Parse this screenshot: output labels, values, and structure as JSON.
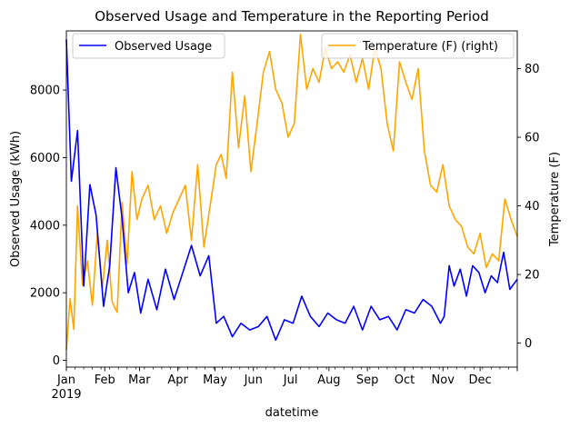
{
  "chart_data": {
    "type": "line",
    "title": "Observed Usage and Temperature in the Reporting Period",
    "xlabel": "datetime",
    "x_range": [
      "2019-01-01",
      "2019-12-31"
    ],
    "x_ticks": {
      "months": [
        "Jan",
        "Feb",
        "Mar",
        "Apr",
        "May",
        "Jun",
        "Jul",
        "Aug",
        "Sep",
        "Oct",
        "Nov",
        "Dec"
      ],
      "year_label": "2019"
    },
    "left_axis": {
      "label": "Observed Usage (kWh)",
      "ylim": [
        -200,
        9750
      ],
      "ticks": [
        0,
        2000,
        4000,
        6000,
        8000
      ]
    },
    "right_axis": {
      "label": "Temperature (F)",
      "ylim": [
        -7,
        91
      ],
      "ticks": [
        0,
        20,
        40,
        60,
        80
      ]
    },
    "legend": {
      "left": {
        "label": "Observed Usage",
        "position": "upper-left"
      },
      "right": {
        "label": "Temperature (F) (right)",
        "position": "upper-right"
      }
    },
    "series": [
      {
        "name": "Observed Usage",
        "axis": "left",
        "color": "#0000ff",
        "x": [
          "2019-01-01",
          "2019-01-05",
          "2019-01-10",
          "2019-01-15",
          "2019-01-20",
          "2019-01-25",
          "2019-01-31",
          "2019-02-05",
          "2019-02-10",
          "2019-02-15",
          "2019-02-20",
          "2019-02-25",
          "2019-03-02",
          "2019-03-08",
          "2019-03-15",
          "2019-03-22",
          "2019-03-29",
          "2019-04-05",
          "2019-04-12",
          "2019-04-19",
          "2019-04-26",
          "2019-05-02",
          "2019-05-08",
          "2019-05-15",
          "2019-05-22",
          "2019-05-29",
          "2019-06-05",
          "2019-06-12",
          "2019-06-19",
          "2019-06-26",
          "2019-07-03",
          "2019-07-10",
          "2019-07-17",
          "2019-07-24",
          "2019-07-31",
          "2019-08-07",
          "2019-08-14",
          "2019-08-21",
          "2019-08-28",
          "2019-09-04",
          "2019-09-11",
          "2019-09-18",
          "2019-09-25",
          "2019-10-02",
          "2019-10-09",
          "2019-10-16",
          "2019-10-23",
          "2019-10-30",
          "2019-11-02",
          "2019-11-06",
          "2019-11-10",
          "2019-11-15",
          "2019-11-20",
          "2019-11-25",
          "2019-11-30",
          "2019-12-05",
          "2019-12-10",
          "2019-12-15",
          "2019-12-20",
          "2019-12-25",
          "2019-12-31"
        ],
        "values": [
          9500,
          5300,
          6800,
          2200,
          5200,
          4300,
          1600,
          2800,
          5700,
          4200,
          2000,
          2600,
          1400,
          2400,
          1500,
          2700,
          1800,
          2600,
          3400,
          2500,
          3100,
          1100,
          1300,
          700,
          1100,
          900,
          1000,
          1300,
          600,
          1200,
          1100,
          1900,
          1300,
          1000,
          1400,
          1200,
          1100,
          1600,
          900,
          1600,
          1200,
          1300,
          900,
          1500,
          1400,
          1800,
          1600,
          1100,
          1300,
          2800,
          2200,
          2700,
          1900,
          2800,
          2600,
          2000,
          2500,
          2300,
          3200,
          2100,
          2400
        ]
      },
      {
        "name": "Temperature (F) (right)",
        "axis": "right",
        "color": "#ffa500",
        "x": [
          "2019-01-01",
          "2019-01-04",
          "2019-01-07",
          "2019-01-10",
          "2019-01-14",
          "2019-01-18",
          "2019-01-22",
          "2019-01-26",
          "2019-01-30",
          "2019-02-03",
          "2019-02-07",
          "2019-02-11",
          "2019-02-15",
          "2019-02-19",
          "2019-02-23",
          "2019-02-27",
          "2019-03-03",
          "2019-03-08",
          "2019-03-13",
          "2019-03-18",
          "2019-03-23",
          "2019-03-28",
          "2019-04-02",
          "2019-04-07",
          "2019-04-12",
          "2019-04-17",
          "2019-04-22",
          "2019-04-27",
          "2019-05-02",
          "2019-05-06",
          "2019-05-10",
          "2019-05-15",
          "2019-05-20",
          "2019-05-25",
          "2019-05-30",
          "2019-06-04",
          "2019-06-09",
          "2019-06-14",
          "2019-06-19",
          "2019-06-24",
          "2019-06-29",
          "2019-07-04",
          "2019-07-09",
          "2019-07-14",
          "2019-07-19",
          "2019-07-24",
          "2019-07-29",
          "2019-08-03",
          "2019-08-08",
          "2019-08-13",
          "2019-08-18",
          "2019-08-23",
          "2019-08-28",
          "2019-09-02",
          "2019-09-07",
          "2019-09-12",
          "2019-09-17",
          "2019-09-22",
          "2019-09-27",
          "2019-10-02",
          "2019-10-07",
          "2019-10-12",
          "2019-10-17",
          "2019-10-22",
          "2019-10-27",
          "2019-11-01",
          "2019-11-06",
          "2019-11-11",
          "2019-11-16",
          "2019-11-21",
          "2019-11-26",
          "2019-12-01",
          "2019-12-06",
          "2019-12-11",
          "2019-12-16",
          "2019-12-21",
          "2019-12-26",
          "2019-12-31"
        ],
        "values": [
          -2,
          13,
          4,
          40,
          17,
          24,
          11,
          32,
          16,
          30,
          12,
          9,
          41,
          23,
          50,
          36,
          42,
          46,
          36,
          40,
          32,
          38,
          42,
          46,
          30,
          52,
          28,
          40,
          52,
          55,
          48,
          79,
          57,
          72,
          50,
          64,
          79,
          85,
          74,
          70,
          60,
          64,
          90,
          74,
          80,
          76,
          86,
          80,
          82,
          79,
          84,
          76,
          83,
          74,
          86,
          80,
          64,
          56,
          82,
          76,
          71,
          80,
          56,
          46,
          44,
          52,
          40,
          36,
          34,
          28,
          26,
          32,
          22,
          26,
          24,
          42,
          36,
          31
        ]
      }
    ]
  }
}
